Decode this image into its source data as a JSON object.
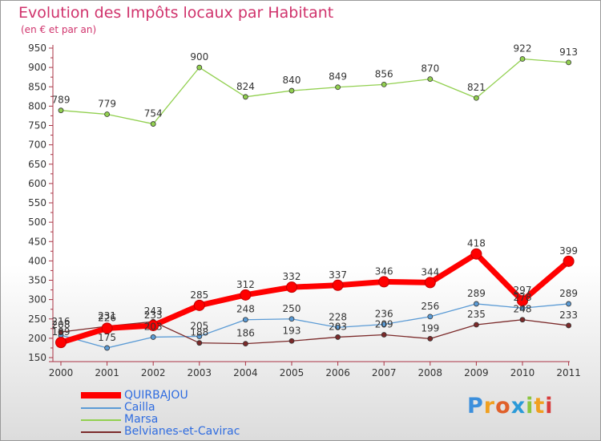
{
  "chart_data": {
    "type": "line",
    "title": "Evolution des Impôts locaux par Habitant",
    "subtitle": "(en € et par an)",
    "xlabel": "",
    "ylabel": "",
    "ylim": [
      150,
      950
    ],
    "yticks": [
      150,
      200,
      250,
      300,
      350,
      400,
      450,
      500,
      550,
      600,
      650,
      700,
      750,
      800,
      850,
      900,
      950
    ],
    "categories": [
      "2000",
      "2001",
      "2002",
      "2003",
      "2004",
      "2005",
      "2006",
      "2007",
      "2008",
      "2009",
      "2010",
      "2011"
    ],
    "grid": false,
    "legend_position": "bottom-left",
    "series": [
      {
        "name": "QUIRBAJOU",
        "color": "#ff0000",
        "values": [
          189,
          226,
          233,
          285,
          312,
          332,
          337,
          346,
          344,
          418,
          297,
          399
        ]
      },
      {
        "name": "Cailla",
        "color": "#5b9bd5",
        "values": [
          208,
          175,
          203,
          205,
          248,
          250,
          228,
          236,
          256,
          289,
          278,
          289
        ]
      },
      {
        "name": "Marsa",
        "color": "#92d050",
        "values": [
          789,
          779,
          754,
          900,
          824,
          840,
          849,
          856,
          870,
          821,
          922,
          913
        ]
      },
      {
        "name": "Belvianes-et-Cavirac",
        "color": "#7b2a2a",
        "values": [
          216,
          231,
          243,
          188,
          186,
          193,
          203,
          209,
          199,
          235,
          248,
          233
        ]
      }
    ]
  },
  "logo": {
    "letters": [
      "P",
      "r",
      "o",
      "x",
      "i",
      "t",
      "i"
    ]
  }
}
